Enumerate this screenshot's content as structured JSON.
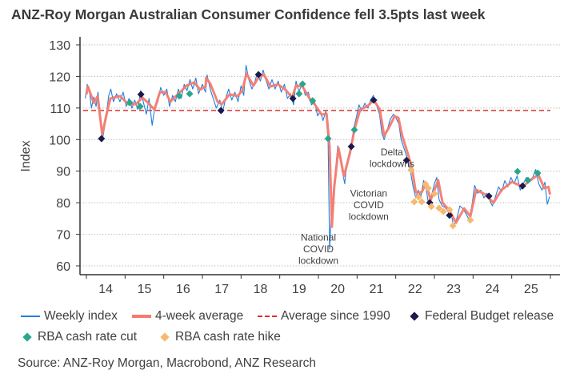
{
  "title": "ANZ-Roy Morgan Australian Consumer Confidence fell 3.5pts last week",
  "source": "Source: ANZ-Roy Morgan, Macrobond, ANZ Research",
  "colors": {
    "weekly": "#1f7fe0",
    "average4w": "#f57b6e",
    "longrun": "#d9302a",
    "budget": "#1c1a4a",
    "cut": "#2ca58d",
    "hike": "#f7b96e",
    "grid": "#bfbfbf"
  },
  "chart_data": {
    "type": "line",
    "title": "ANZ-Roy Morgan Australian Consumer Confidence fell 3.5pts last week",
    "ylabel": "Index",
    "xlabel": "",
    "ylim": [
      60,
      130
    ],
    "xlim": [
      2014,
      2026
    ],
    "yticks": [
      60,
      70,
      80,
      90,
      100,
      110,
      120,
      130
    ],
    "xtick_labels": [
      "14",
      "15",
      "16",
      "17",
      "18",
      "19",
      "20",
      "21",
      "22",
      "23",
      "24",
      "25"
    ],
    "grid": "horizontal dotted",
    "legend_placement": "bottom",
    "legend": [
      "Weekly index",
      "4-week average",
      "Average since 1990",
      "Federal Budget release",
      "RBA cash rate cut",
      "RBA cash rate hike"
    ],
    "average_since_1990": 109.2,
    "series": [
      {
        "name": "Weekly index",
        "type": "line",
        "points": [
          [
            2013.97,
            113
          ],
          [
            2014.02,
            117.5
          ],
          [
            2014.08,
            115
          ],
          [
            2014.13,
            110
          ],
          [
            2014.19,
            113.5
          ],
          [
            2014.25,
            110.5
          ],
          [
            2014.3,
            115
          ],
          [
            2014.36,
            108
          ],
          [
            2014.41,
            99.5
          ],
          [
            2014.47,
            104
          ],
          [
            2014.52,
            108.5
          ],
          [
            2014.58,
            114
          ],
          [
            2014.63,
            116
          ],
          [
            2014.7,
            112
          ],
          [
            2014.78,
            114.5
          ],
          [
            2014.87,
            112
          ],
          [
            2014.95,
            115
          ],
          [
            2015.03,
            110.5
          ],
          [
            2015.1,
            113
          ],
          [
            2015.18,
            110
          ],
          [
            2015.25,
            112.5
          ],
          [
            2015.33,
            109.5
          ],
          [
            2015.4,
            115.5
          ],
          [
            2015.47,
            112
          ],
          [
            2015.55,
            108
          ],
          [
            2015.62,
            113
          ],
          [
            2015.7,
            104.5
          ],
          [
            2015.78,
            111
          ],
          [
            2015.85,
            112
          ],
          [
            2015.92,
            116.5
          ],
          [
            2016.0,
            114
          ],
          [
            2016.08,
            116
          ],
          [
            2016.15,
            110.5
          ],
          [
            2016.23,
            114
          ],
          [
            2016.3,
            112
          ],
          [
            2016.38,
            116
          ],
          [
            2016.45,
            113
          ],
          [
            2016.53,
            117.5
          ],
          [
            2016.6,
            115.5
          ],
          [
            2016.68,
            119
          ],
          [
            2016.75,
            116
          ],
          [
            2016.83,
            119.5
          ],
          [
            2016.9,
            114.5
          ],
          [
            2017.0,
            117.5
          ],
          [
            2017.08,
            115
          ],
          [
            2017.12,
            120.5
          ],
          [
            2017.2,
            116
          ],
          [
            2017.28,
            113
          ],
          [
            2017.36,
            110
          ],
          [
            2017.45,
            112.5
          ],
          [
            2017.52,
            108.5
          ],
          [
            2017.6,
            113
          ],
          [
            2017.68,
            116
          ],
          [
            2017.76,
            112.5
          ],
          [
            2017.84,
            115
          ],
          [
            2017.92,
            112
          ],
          [
            2018.0,
            117
          ],
          [
            2018.07,
            114
          ],
          [
            2018.13,
            123.5
          ],
          [
            2018.2,
            119
          ],
          [
            2018.28,
            116
          ],
          [
            2018.35,
            118
          ],
          [
            2018.42,
            121
          ],
          [
            2018.5,
            118.5
          ],
          [
            2018.57,
            122
          ],
          [
            2018.64,
            119
          ],
          [
            2018.72,
            116
          ],
          [
            2018.8,
            119
          ],
          [
            2018.88,
            116
          ],
          [
            2018.96,
            118.5
          ],
          [
            2019.04,
            115
          ],
          [
            2019.12,
            117.5
          ],
          [
            2019.2,
            113
          ],
          [
            2019.28,
            114.5
          ],
          [
            2019.36,
            111
          ],
          [
            2019.42,
            118.5
          ],
          [
            2019.5,
            115
          ],
          [
            2019.58,
            118
          ],
          [
            2019.66,
            114
          ],
          [
            2019.74,
            115
          ],
          [
            2019.82,
            111
          ],
          [
            2019.9,
            112
          ],
          [
            2019.98,
            107.5
          ],
          [
            2020.05,
            109
          ],
          [
            2020.12,
            106
          ],
          [
            2020.19,
            109
          ],
          [
            2020.25,
            100
          ],
          [
            2020.29,
            65.3
          ],
          [
            2020.33,
            75
          ],
          [
            2020.38,
            82
          ],
          [
            2020.44,
            90
          ],
          [
            2020.5,
            98
          ],
          [
            2020.56,
            95
          ],
          [
            2020.62,
            90
          ],
          [
            2020.68,
            86
          ],
          [
            2020.74,
            93
          ],
          [
            2020.8,
            96
          ],
          [
            2020.86,
            99
          ],
          [
            2020.92,
            104
          ],
          [
            2020.98,
            107
          ],
          [
            2021.05,
            111
          ],
          [
            2021.12,
            109
          ],
          [
            2021.2,
            111.5
          ],
          [
            2021.28,
            110
          ],
          [
            2021.35,
            112.5
          ],
          [
            2021.42,
            114
          ],
          [
            2021.5,
            111
          ],
          [
            2021.58,
            108
          ],
          [
            2021.64,
            102
          ],
          [
            2021.7,
            100
          ],
          [
            2021.78,
            103
          ],
          [
            2021.86,
            106.5
          ],
          [
            2021.94,
            108
          ],
          [
            2022.0,
            107
          ],
          [
            2022.08,
            105
          ],
          [
            2022.14,
            100
          ],
          [
            2022.22,
            97
          ],
          [
            2022.3,
            94
          ],
          [
            2022.38,
            90
          ],
          [
            2022.45,
            85
          ],
          [
            2022.52,
            81.5
          ],
          [
            2022.58,
            84
          ],
          [
            2022.65,
            82
          ],
          [
            2022.72,
            87
          ],
          [
            2022.78,
            85
          ],
          [
            2022.85,
            79.5
          ],
          [
            2022.92,
            82
          ],
          [
            2023.0,
            86
          ],
          [
            2023.06,
            88
          ],
          [
            2023.12,
            81
          ],
          [
            2023.2,
            79
          ],
          [
            2023.28,
            78.5
          ],
          [
            2023.36,
            77
          ],
          [
            2023.44,
            76
          ],
          [
            2023.5,
            72.5
          ],
          [
            2023.58,
            75
          ],
          [
            2023.66,
            79
          ],
          [
            2023.74,
            78
          ],
          [
            2023.82,
            76.5
          ],
          [
            2023.9,
            74.5
          ],
          [
            2023.98,
            80
          ],
          [
            2024.04,
            85.5
          ],
          [
            2024.12,
            83
          ],
          [
            2024.2,
            84
          ],
          [
            2024.28,
            81.5
          ],
          [
            2024.36,
            83
          ],
          [
            2024.44,
            80.5
          ],
          [
            2024.5,
            79
          ],
          [
            2024.58,
            82
          ],
          [
            2024.66,
            85
          ],
          [
            2024.74,
            83.5
          ],
          [
            2024.82,
            87
          ],
          [
            2024.9,
            85
          ],
          [
            2024.98,
            88
          ],
          [
            2025.06,
            86
          ],
          [
            2025.14,
            88.5
          ],
          [
            2025.22,
            84
          ],
          [
            2025.3,
            86
          ],
          [
            2025.38,
            88
          ],
          [
            2025.46,
            87
          ],
          [
            2025.54,
            88
          ],
          [
            2025.62,
            90.5
          ],
          [
            2025.7,
            86
          ],
          [
            2025.78,
            84
          ],
          [
            2025.86,
            86.5
          ],
          [
            2025.92,
            79.5
          ],
          [
            2025.98,
            82
          ]
        ]
      },
      {
        "name": "4-week average",
        "type": "line",
        "points": [
          [
            2014.0,
            114.3
          ],
          [
            2014.04,
            116.8
          ],
          [
            2014.19,
            111.7
          ],
          [
            2014.29,
            113.7
          ],
          [
            2014.41,
            101.6
          ],
          [
            2014.52,
            107.9
          ],
          [
            2014.62,
            113
          ],
          [
            2014.87,
            113.8
          ],
          [
            2015.08,
            111.2
          ],
          [
            2015.28,
            111.2
          ],
          [
            2015.45,
            113.3
          ],
          [
            2015.63,
            111.2
          ],
          [
            2015.76,
            109.5
          ],
          [
            2015.9,
            115
          ],
          [
            2016.05,
            115
          ],
          [
            2016.17,
            112
          ],
          [
            2016.38,
            114.5
          ],
          [
            2016.59,
            117.1
          ],
          [
            2016.79,
            118.1
          ],
          [
            2016.94,
            115.8
          ],
          [
            2017.08,
            116.8
          ],
          [
            2017.1,
            119.6
          ],
          [
            2017.21,
            117.5
          ],
          [
            2017.39,
            112
          ],
          [
            2017.5,
            111.2
          ],
          [
            2017.7,
            114.3
          ],
          [
            2017.91,
            113.8
          ],
          [
            2018.03,
            115.5
          ],
          [
            2018.14,
            120.9
          ],
          [
            2018.32,
            117.1
          ],
          [
            2018.45,
            119.6
          ],
          [
            2018.59,
            120.6
          ],
          [
            2018.76,
            116.8
          ],
          [
            2018.95,
            117.5
          ],
          [
            2019.15,
            115.8
          ],
          [
            2019.32,
            113.3
          ],
          [
            2019.42,
            117.1
          ],
          [
            2019.59,
            116.8
          ],
          [
            2019.77,
            113
          ],
          [
            2019.9,
            111.2
          ],
          [
            2020.08,
            107.9
          ],
          [
            2020.21,
            108.2
          ],
          [
            2020.29,
            97.8
          ],
          [
            2020.35,
            72.4
          ],
          [
            2020.41,
            85
          ],
          [
            2020.52,
            97.3
          ],
          [
            2020.66,
            88.4
          ],
          [
            2020.81,
            95.3
          ],
          [
            2020.93,
            103.1
          ],
          [
            2021.08,
            109.5
          ],
          [
            2021.28,
            110.7
          ],
          [
            2021.43,
            112.5
          ],
          [
            2021.59,
            109.5
          ],
          [
            2021.7,
            101.2
          ],
          [
            2021.84,
            104.1
          ],
          [
            2021.97,
            107.4
          ],
          [
            2022.07,
            106.9
          ],
          [
            2022.17,
            101.1
          ],
          [
            2022.32,
            95.3
          ],
          [
            2022.42,
            90.9
          ],
          [
            2022.52,
            83.3
          ],
          [
            2022.67,
            83.3
          ],
          [
            2022.79,
            86.3
          ],
          [
            2022.9,
            80.8
          ],
          [
            2023.1,
            87.1
          ],
          [
            2023.21,
            80
          ],
          [
            2023.39,
            77.5
          ],
          [
            2023.56,
            73.7
          ],
          [
            2023.77,
            78.2
          ],
          [
            2023.93,
            75.7
          ],
          [
            2024.08,
            84.1
          ],
          [
            2024.32,
            82.6
          ],
          [
            2024.53,
            80
          ],
          [
            2024.74,
            84.1
          ],
          [
            2025.01,
            86.6
          ],
          [
            2025.28,
            85
          ],
          [
            2025.48,
            87.1
          ],
          [
            2025.69,
            88.9
          ],
          [
            2025.84,
            84.6
          ],
          [
            2025.95,
            85
          ],
          [
            2025.99,
            82.6
          ]
        ]
      }
    ],
    "markers": {
      "budget": {
        "name": "Federal Budget release",
        "points": [
          [
            2014.39,
            100.3
          ],
          [
            2015.41,
            114.3
          ],
          [
            2017.48,
            109.2
          ],
          [
            2018.45,
            120.6
          ],
          [
            2019.34,
            113
          ],
          [
            2020.85,
            97.8
          ],
          [
            2021.43,
            112.5
          ],
          [
            2022.28,
            93.4
          ],
          [
            2022.88,
            80
          ],
          [
            2023.39,
            76
          ],
          [
            2024.41,
            82.1
          ],
          [
            2025.28,
            85.3
          ]
        ]
      },
      "cut": {
        "name": "RBA cash rate cut",
        "points": [
          [
            2015.12,
            111.7
          ],
          [
            2015.39,
            110.5
          ],
          [
            2016.4,
            113.8
          ],
          [
            2016.67,
            114.5
          ],
          [
            2019.5,
            114.5
          ],
          [
            2019.59,
            117.6
          ],
          [
            2019.85,
            112.3
          ],
          [
            2020.25,
            100.3
          ],
          [
            2020.93,
            103.1
          ],
          [
            2025.15,
            89.9
          ],
          [
            2025.42,
            87.1
          ],
          [
            2025.67,
            89.4
          ]
        ]
      },
      "hike": {
        "name": "RBA cash rate hike",
        "points": [
          [
            2022.4,
            90.4
          ],
          [
            2022.48,
            80.3
          ],
          [
            2022.59,
            81.8
          ],
          [
            2022.67,
            80.3
          ],
          [
            2022.77,
            85.9
          ],
          [
            2022.84,
            84.6
          ],
          [
            2022.92,
            78.8
          ],
          [
            2023.0,
            82.9
          ],
          [
            2023.12,
            78.3
          ],
          [
            2023.23,
            77.2
          ],
          [
            2023.39,
            77.8
          ],
          [
            2023.48,
            72.7
          ],
          [
            2023.93,
            74.5
          ]
        ]
      }
    },
    "annotations": [
      {
        "lines": [
          "National",
          "COVID",
          "lockdown"
        ],
        "x": 2020.0,
        "y": 68
      },
      {
        "lines": [
          "Victorian",
          "COVID",
          "lockdown"
        ],
        "x": 2021.3,
        "y": 82
      },
      {
        "lines": [
          "Delta",
          "lockdowns"
        ],
        "x": 2021.9,
        "y": 95
      }
    ]
  }
}
